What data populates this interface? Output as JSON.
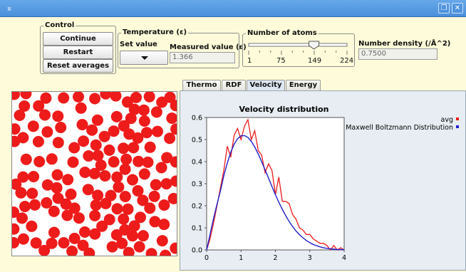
{
  "window": {
    "menu_icon": "⌅",
    "restore_icon": "❐",
    "close_icon": "✕"
  },
  "control": {
    "title": "Control",
    "continue": "Continue",
    "restart": "Restart",
    "reset_averages": "Reset averages"
  },
  "temperature": {
    "title": "Temperature (ε)",
    "set_value_label": "Set value",
    "measured_label": "Measured value (ε)",
    "measured_value": "1.366"
  },
  "atoms": {
    "title": "Number of atoms",
    "slider_value": 149,
    "min": 1,
    "max": 224,
    "ticks": [
      "1",
      "75",
      "149",
      "224"
    ]
  },
  "density": {
    "label": "Number density (/Å^2)",
    "value": "0.7500"
  },
  "tabs": [
    {
      "label": "Thermo",
      "active": false
    },
    {
      "label": "RDF",
      "active": false
    },
    {
      "label": "Velocity",
      "active": true
    },
    {
      "label": "Energy",
      "active": false
    }
  ],
  "colors": {
    "avg": "#ee1b1b",
    "mb": "#1f1fcc",
    "atom": "#ee1b1b"
  },
  "chart_data": {
    "type": "line",
    "title": "Velocity distribution",
    "xlabel": "",
    "ylabel": "",
    "xlim": [
      0,
      4
    ],
    "ylim": [
      0,
      0.6
    ],
    "xticks": [
      "0",
      "1",
      "2",
      "3",
      "4"
    ],
    "yticks": [
      "0.0",
      "0.1",
      "0.2",
      "0.3",
      "0.4",
      "0.5",
      "0.6"
    ],
    "legend_position": "top-right",
    "series": [
      {
        "name": "avg",
        "color": "#ee1b1b",
        "x": [
          0,
          0.1,
          0.2,
          0.3,
          0.4,
          0.5,
          0.6,
          0.7,
          0.8,
          0.9,
          1.0,
          1.1,
          1.2,
          1.3,
          1.4,
          1.5,
          1.6,
          1.7,
          1.8,
          1.9,
          2.0,
          2.1,
          2.2,
          2.3,
          2.4,
          2.5,
          2.6,
          2.7,
          2.8,
          2.9,
          3.0,
          3.1,
          3.2,
          3.3,
          3.4,
          3.5,
          3.6,
          3.7,
          3.8,
          3.9,
          4.0
        ],
        "y": [
          0.0,
          0.05,
          0.12,
          0.2,
          0.28,
          0.36,
          0.47,
          0.42,
          0.52,
          0.55,
          0.5,
          0.56,
          0.59,
          0.5,
          0.54,
          0.45,
          0.43,
          0.35,
          0.39,
          0.36,
          0.25,
          0.33,
          0.22,
          0.22,
          0.21,
          0.16,
          0.14,
          0.1,
          0.09,
          0.07,
          0.07,
          0.05,
          0.04,
          0.03,
          0.03,
          0.02,
          0.0,
          0.02,
          0.0,
          0.01,
          0.0
        ]
      },
      {
        "name": "Maxwell Boltzmann Distribution",
        "color": "#1f1fcc",
        "x": [
          0,
          0.1,
          0.2,
          0.3,
          0.4,
          0.5,
          0.6,
          0.7,
          0.8,
          0.9,
          1.0,
          1.1,
          1.2,
          1.3,
          1.4,
          1.5,
          1.6,
          1.7,
          1.8,
          1.9,
          2.0,
          2.1,
          2.2,
          2.3,
          2.4,
          2.5,
          2.6,
          2.7,
          2.8,
          2.9,
          3.0,
          3.1,
          3.2,
          3.3,
          3.4,
          3.5,
          3.6,
          3.7,
          3.8,
          3.9,
          4.0
        ],
        "y": [
          0.0,
          0.071,
          0.141,
          0.206,
          0.266,
          0.336,
          0.394,
          0.442,
          0.479,
          0.504,
          0.517,
          0.518,
          0.51,
          0.492,
          0.466,
          0.435,
          0.4,
          0.363,
          0.325,
          0.287,
          0.25,
          0.216,
          0.184,
          0.155,
          0.129,
          0.106,
          0.086,
          0.069,
          0.055,
          0.043,
          0.033,
          0.025,
          0.019,
          0.014,
          0.01,
          0.007,
          0.005,
          0.004,
          0.002,
          0.002,
          0.001
        ]
      }
    ]
  }
}
